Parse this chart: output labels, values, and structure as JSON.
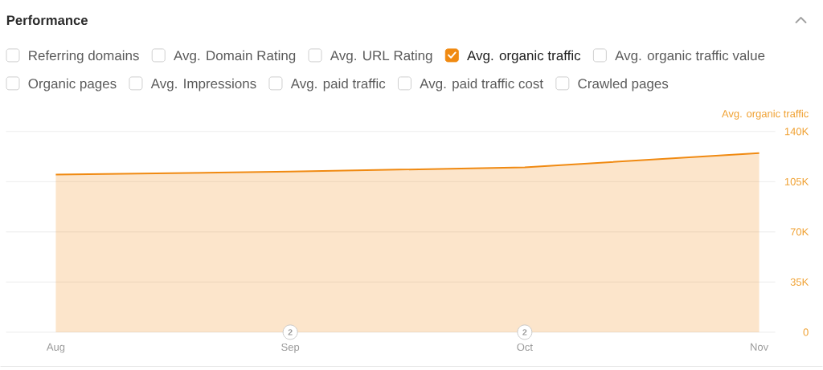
{
  "chart_data": {
    "type": "area",
    "title": "Performance",
    "ylabel": "Avg. organic traffic",
    "categories": [
      "Aug",
      "Sep",
      "Oct",
      "Nov"
    ],
    "series": [
      {
        "name": "Avg. organic traffic",
        "color": "#f08a12",
        "values": [
          110000,
          112000,
          115000,
          125000
        ]
      }
    ],
    "ylim": [
      0,
      140000
    ],
    "yticks": [
      0,
      {
        "value": 35000,
        "label": "35K"
      },
      {
        "value": 70000,
        "label": "70K"
      },
      {
        "value": 105000,
        "label": "105K"
      },
      {
        "value": 140000,
        "label": "140K"
      }
    ],
    "grid": "y",
    "legend": "top",
    "annotations": [
      "Referring domains",
      "Avg. Domain Rating",
      "Avg. URL Rating",
      "Avg. organic traffic value",
      "Organic pages",
      "Avg. Impressions",
      "Avg. paid traffic",
      "Avg. paid traffic cost",
      "Crawled pages",
      {
        "text": "2",
        "x": "Sep"
      },
      {
        "text": "2",
        "x": "Oct"
      }
    ]
  }
}
